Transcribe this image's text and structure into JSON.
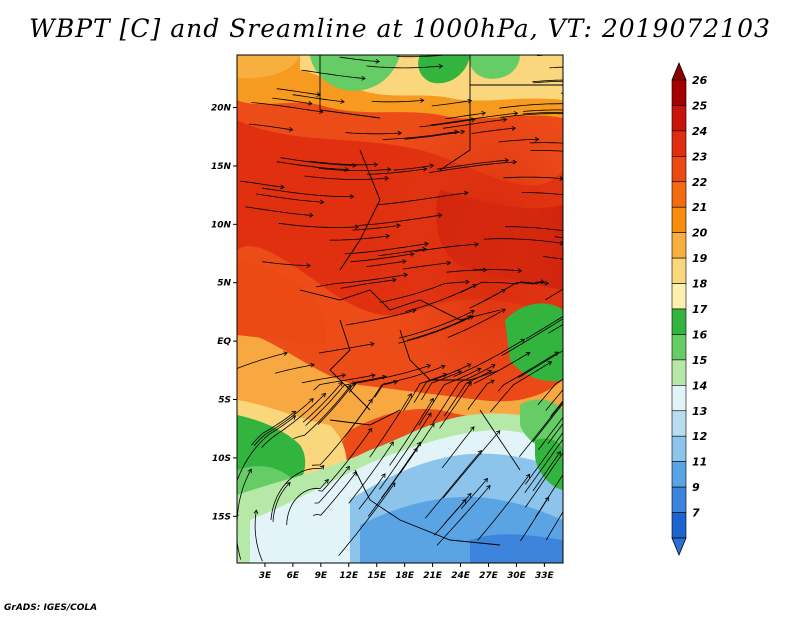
{
  "title": "WBPT [C] and Sreamline at 1000hPa, VT: 2019072103",
  "footer": "GrADS: IGES/COLA",
  "map": {
    "lat_labels": [
      "20N",
      "15N",
      "10N",
      "5N",
      "EQ",
      "5S",
      "10S",
      "15S"
    ],
    "lat_values": [
      20,
      15,
      10,
      5,
      0,
      -5,
      -10,
      -15
    ],
    "lon_labels": [
      "3E",
      "6E",
      "9E",
      "12E",
      "15E",
      "18E",
      "21E",
      "24E",
      "27E",
      "30E",
      "33E"
    ],
    "lon_values": [
      3,
      6,
      9,
      12,
      15,
      18,
      21,
      24,
      27,
      30,
      33
    ],
    "lon_range": [
      0,
      35
    ],
    "lat_range": [
      -19,
      24.5
    ]
  },
  "colorbar": {
    "labels": [
      "26",
      "25",
      "24",
      "23",
      "22",
      "21",
      "20",
      "19",
      "18",
      "17",
      "16",
      "15",
      "14",
      "13",
      "12",
      "11",
      "9",
      "7"
    ],
    "colors": [
      "#a50000",
      "#c8140a",
      "#e02d12",
      "#ec4a14",
      "#f26b10",
      "#f78d0c",
      "#f7b040",
      "#fad77c",
      "#fbf0b0",
      "#33b43e",
      "#66cc66",
      "#b6e8a8",
      "#e2f4f7",
      "#b8dcf0",
      "#8cc4ec",
      "#5aa4e4",
      "#3c84dc",
      "#1e64d0"
    ],
    "top_color": "#8c0000",
    "bottom_color": "#2a6fd8"
  }
}
